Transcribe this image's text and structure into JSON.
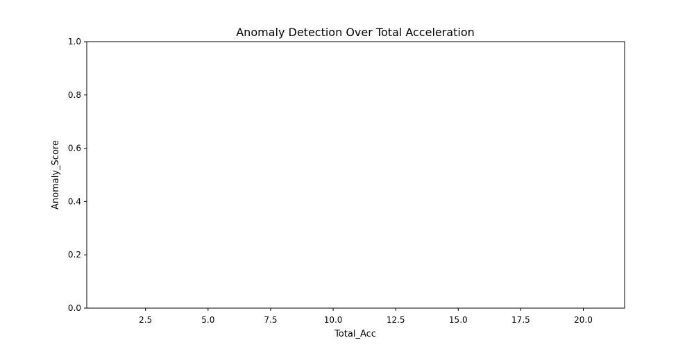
{
  "chart_data": {
    "type": "line",
    "title": "Anomaly Detection Over Total Acceleration",
    "xlabel": "Total_Acc",
    "ylabel": "Anomaly_Score",
    "xlim": [
      0.15,
      21.65
    ],
    "ylim": [
      0.0,
      1.0
    ],
    "x_ticks": [
      2.5,
      5.0,
      7.5,
      10.0,
      12.5,
      15.0,
      17.5,
      20.0
    ],
    "x_tick_labels": [
      "2.5",
      "5.0",
      "7.5",
      "10.0",
      "12.5",
      "15.0",
      "17.5",
      "20.0"
    ],
    "y_ticks": [
      0.0,
      0.2,
      0.4,
      0.6,
      0.8,
      1.0
    ],
    "y_tick_labels": [
      "0.0",
      "0.2",
      "0.4",
      "0.6",
      "0.8",
      "1.0"
    ],
    "grid": false,
    "series": []
  }
}
